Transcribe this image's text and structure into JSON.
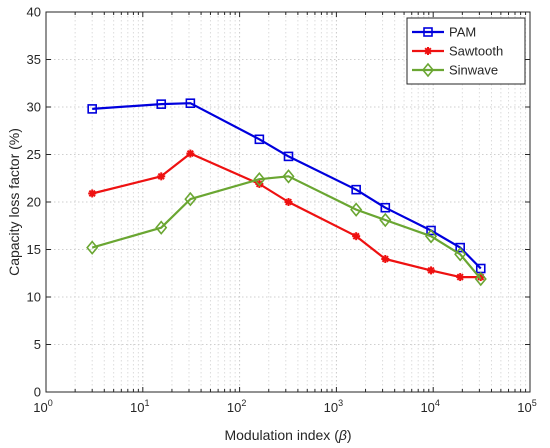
{
  "chart_data": {
    "type": "line",
    "title": "",
    "xlabel_main": "Modulation index (",
    "xlabel_symbol": "β",
    "xlabel_close": ")",
    "ylabel": "Capacity loss factor (%)",
    "xscale": "log",
    "xlim": [
      1,
      100000
    ],
    "ylim": [
      0,
      40
    ],
    "grid": true,
    "legend_position": "top-right",
    "x_ticks": [
      {
        "base": "10",
        "exp": "0"
      },
      {
        "base": "10",
        "exp": "1"
      },
      {
        "base": "10",
        "exp": "2"
      },
      {
        "base": "10",
        "exp": "3"
      },
      {
        "base": "10",
        "exp": "4"
      },
      {
        "base": "10",
        "exp": "5"
      }
    ],
    "y_ticks": [
      "0",
      "5",
      "10",
      "15",
      "20",
      "25",
      "30",
      "35",
      "40"
    ],
    "series": [
      {
        "name": "PAM",
        "color": "#0000dd",
        "marker": "square",
        "x": [
          3,
          15.5,
          31,
          160,
          320,
          1600,
          3200,
          9500,
          19000,
          31000
        ],
        "y": [
          29.8,
          30.3,
          30.4,
          26.6,
          24.8,
          21.3,
          19.4,
          17.0,
          15.2,
          13.0
        ]
      },
      {
        "name": "Sawtooth",
        "color": "#ee1111",
        "marker": "asterisk",
        "x": [
          3,
          15.5,
          31,
          160,
          320,
          1600,
          3200,
          9500,
          19000,
          31000
        ],
        "y": [
          20.9,
          22.7,
          25.1,
          21.9,
          20.0,
          16.4,
          14.0,
          12.8,
          12.1,
          12.1
        ]
      },
      {
        "name": "Sinwave",
        "color": "#6aa632",
        "marker": "diamond",
        "x": [
          3,
          15.5,
          31,
          160,
          320,
          1600,
          3200,
          9500,
          19000,
          31000
        ],
        "y": [
          15.2,
          17.3,
          20.3,
          22.4,
          22.7,
          19.2,
          18.1,
          16.4,
          14.5,
          11.9
        ]
      }
    ]
  }
}
